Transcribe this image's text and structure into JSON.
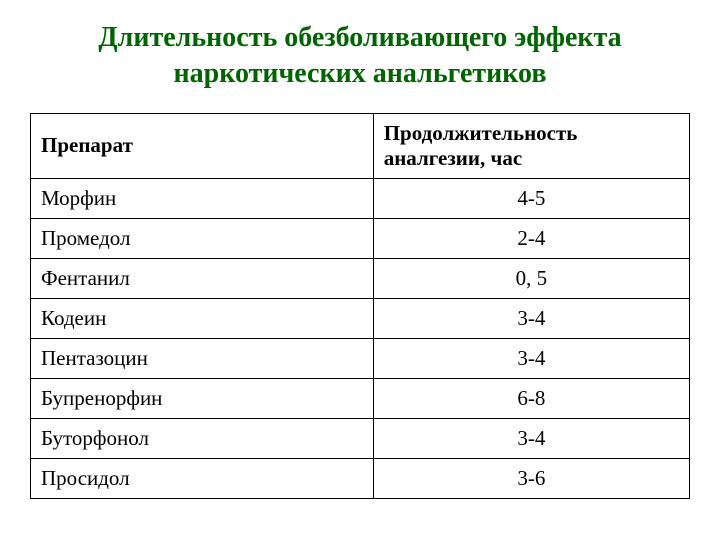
{
  "title": "Длительность обезболивающего эффекта наркотических анальгетиков",
  "table": {
    "type": "table",
    "title_color": "#006400",
    "title_fontsize": 28,
    "cell_fontsize": 21,
    "border_color": "#000000",
    "background_color": "#ffffff",
    "text_color": "#000000",
    "columns": [
      {
        "key": "drug",
        "label": "Препарат",
        "align": "left",
        "width": "52%"
      },
      {
        "key": "duration",
        "label": "Продолжительность аналгезии, час",
        "align": "center",
        "width": "48%"
      }
    ],
    "rows": [
      {
        "drug": "Морфин",
        "duration": "4-5"
      },
      {
        "drug": "Промедол",
        "duration": "2-4"
      },
      {
        "drug": "Фентанил",
        "duration": "0, 5"
      },
      {
        "drug": "Кодеин",
        "duration": "3-4"
      },
      {
        "drug": "Пентазоцин",
        "duration": "3-4"
      },
      {
        "drug": "Бупренорфин",
        "duration": "6-8"
      },
      {
        "drug": "Буторфонол",
        "duration": "3-4"
      },
      {
        "drug": "Просидол",
        "duration": "3-6"
      }
    ]
  }
}
